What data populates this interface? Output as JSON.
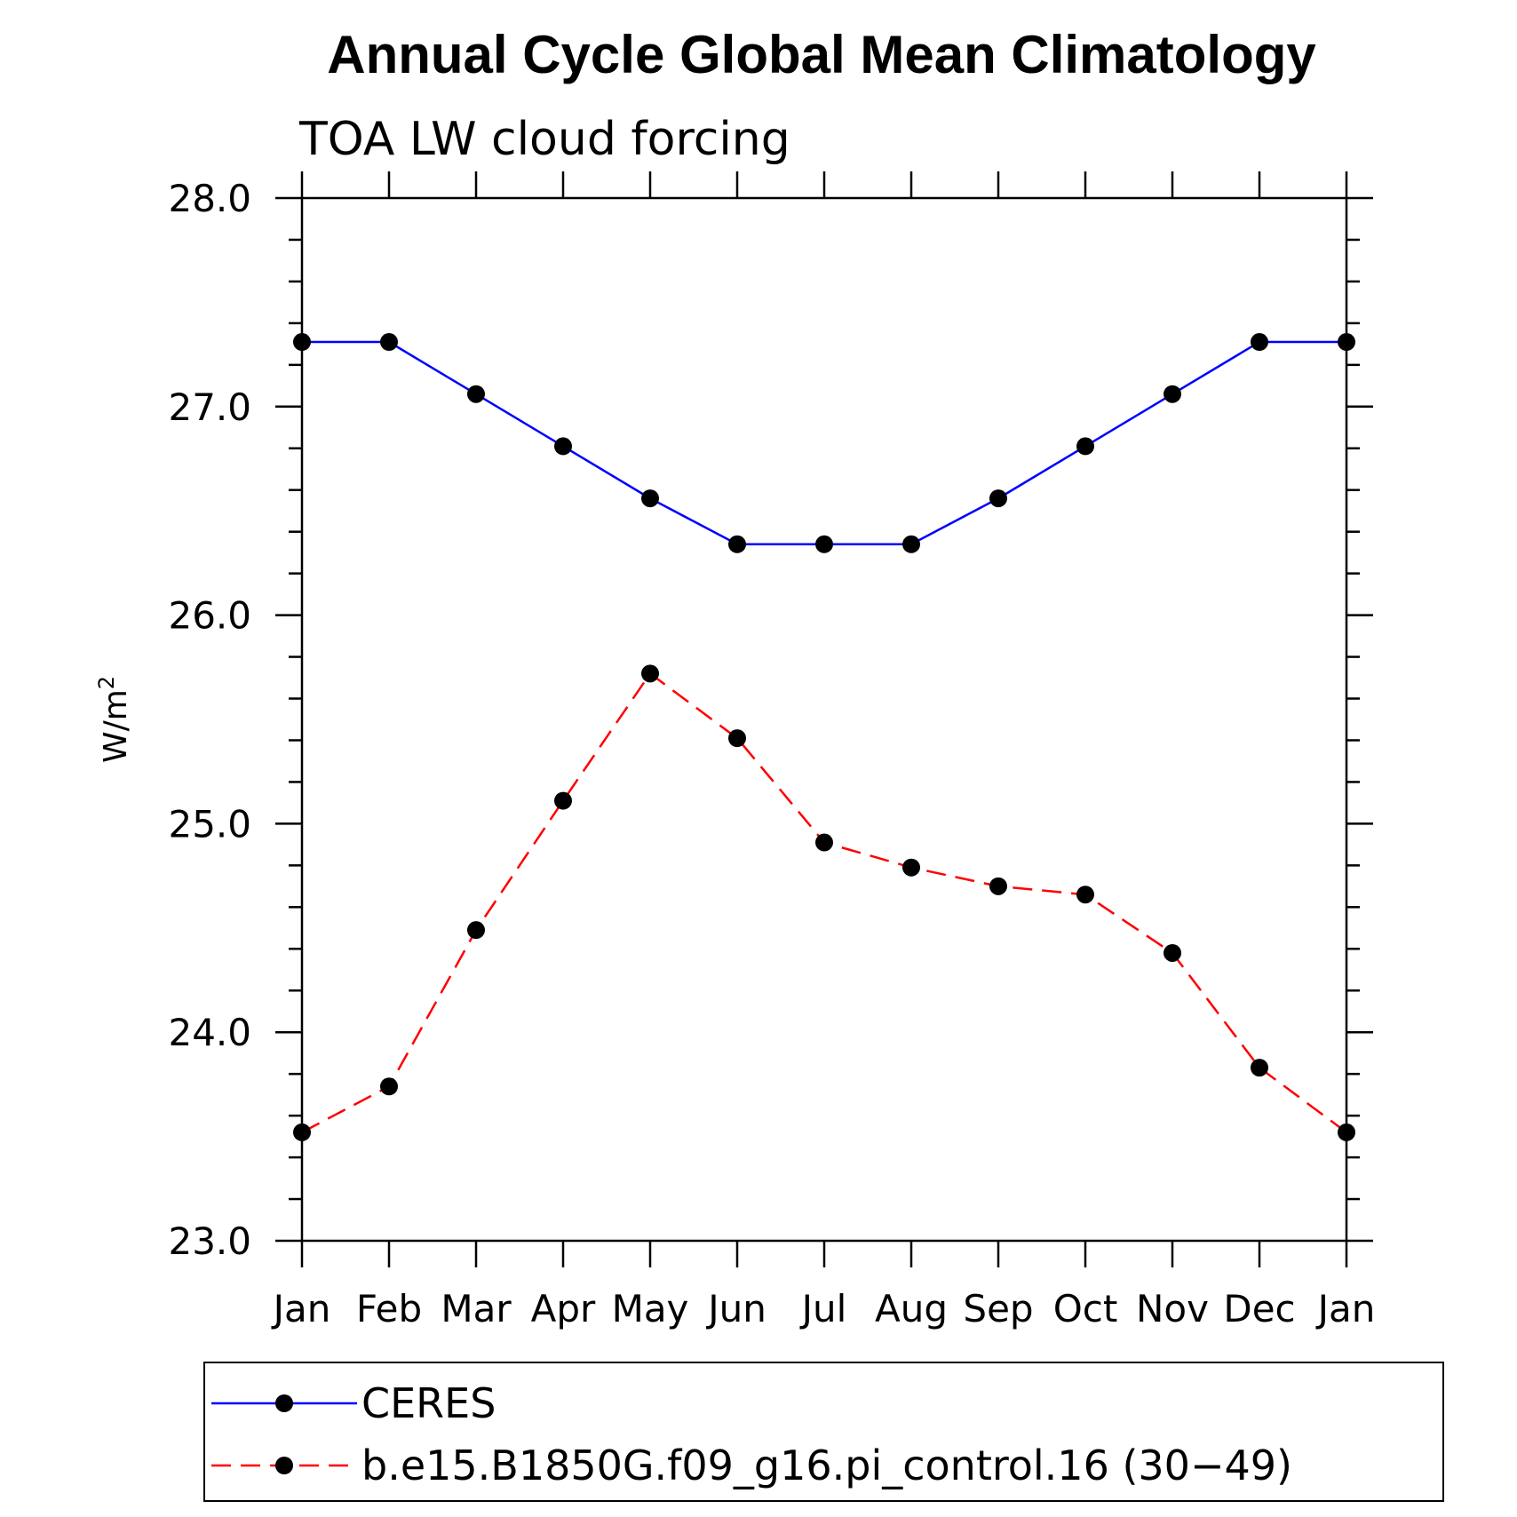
{
  "chart_data": {
    "type": "line",
    "title": "Annual Cycle Global Mean Climatology",
    "subtitle": "TOA LW cloud forcing",
    "ylabel": "W/m",
    "ylabel_sup": "2",
    "ylim": [
      23.0,
      28.0
    ],
    "y_ticks": [
      "23.0",
      "24.0",
      "25.0",
      "26.0",
      "27.0",
      "28.0"
    ],
    "categories": [
      "Jan",
      "Feb",
      "Mar",
      "Apr",
      "May",
      "Jun",
      "Jul",
      "Aug",
      "Sep",
      "Oct",
      "Nov",
      "Dec",
      "Jan"
    ],
    "series": [
      {
        "name": "CERES",
        "color": "#0000ff",
        "dash": "solid",
        "values": [
          27.31,
          27.31,
          27.06,
          26.81,
          26.56,
          26.34,
          26.34,
          26.34,
          26.56,
          26.81,
          27.06,
          27.31,
          27.31
        ]
      },
      {
        "name": "b.e15.B1850G.f09_g16.pi_control.16 (30−49)",
        "color": "#ff0000",
        "dash": "dashed",
        "values": [
          23.52,
          23.74,
          24.49,
          25.11,
          25.72,
          25.41,
          24.91,
          24.79,
          24.7,
          24.66,
          24.38,
          23.83,
          23.52
        ]
      }
    ],
    "marker_color": "#000000",
    "grid": false,
    "legend": "bottom"
  }
}
